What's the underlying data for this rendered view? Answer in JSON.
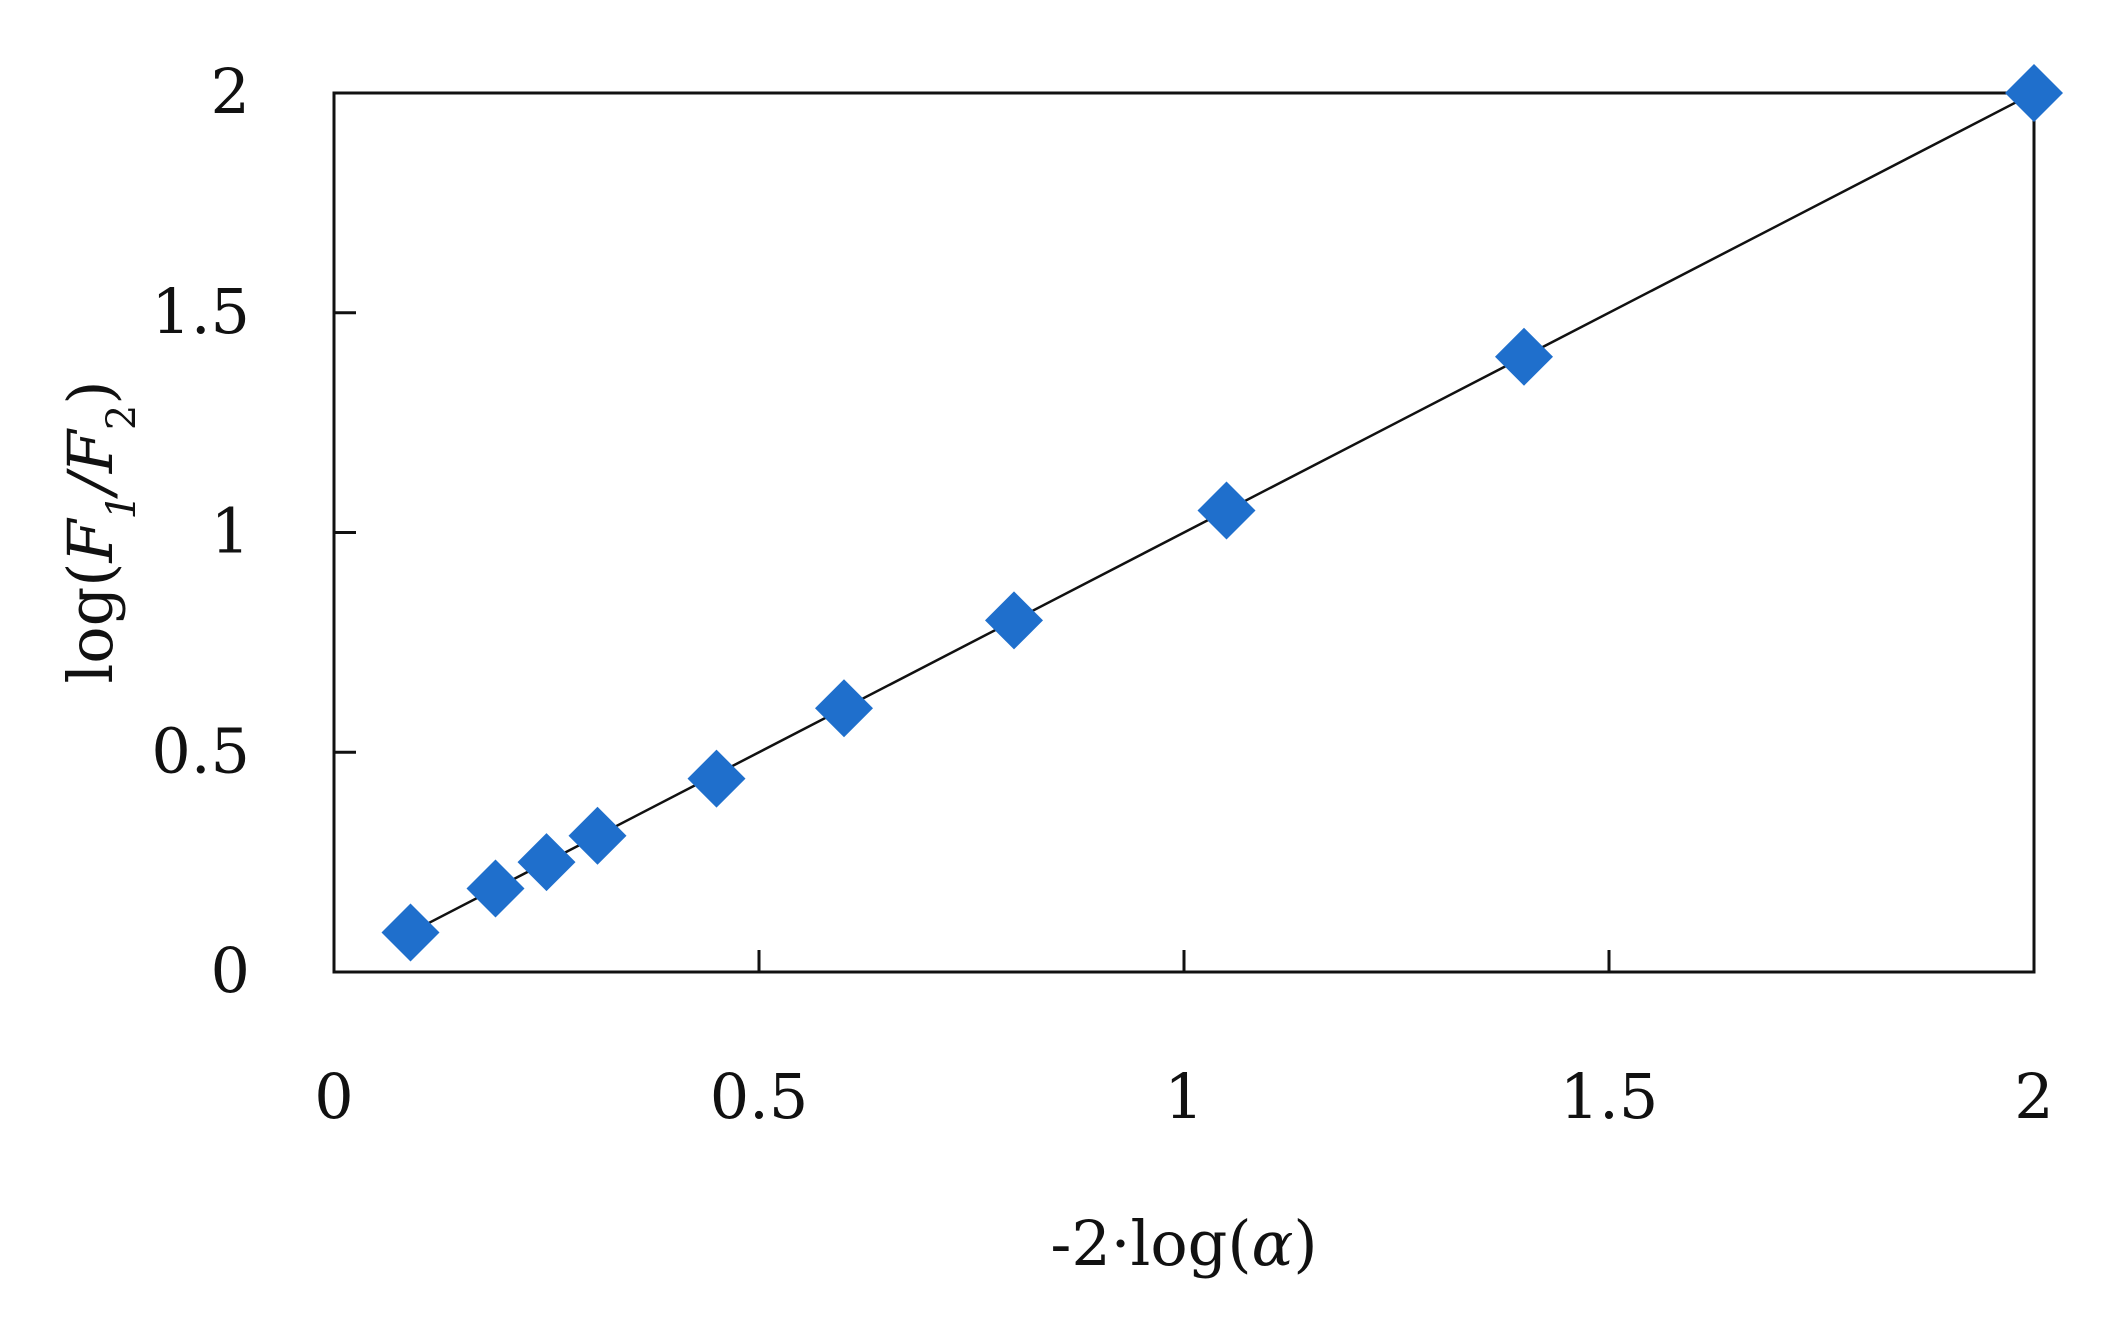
{
  "chart_data": {
    "type": "scatter",
    "title": "",
    "xlabel": "-2·log(α)",
    "ylabel": "log(F1/F2)",
    "xlabel_parts": {
      "prefix": "-2·log(",
      "var": "α",
      "suffix": ")"
    },
    "ylabel_parts": {
      "prefix": "log(",
      "var1": "F",
      "sub1": "1",
      "slash": "/",
      "var2": "F",
      "sub2": "2",
      "suffix": ")"
    },
    "xlim": [
      0,
      2
    ],
    "ylim": [
      0,
      2
    ],
    "xticks": [
      "0",
      "0.5",
      "1",
      "1.5",
      "2"
    ],
    "yticks": [
      "0",
      "0.5",
      "1",
      "1.5",
      "2"
    ],
    "xtick_values": [
      0,
      0.5,
      1,
      1.5,
      2
    ],
    "ytick_values": [
      0,
      0.5,
      1,
      1.5,
      2
    ],
    "grid": false,
    "legend": "none",
    "series": [
      {
        "marker": "diamond",
        "color": "#1f6fcc",
        "points": [
          {
            "x": 0.09,
            "y": 0.09
          },
          {
            "x": 0.19,
            "y": 0.19
          },
          {
            "x": 0.25,
            "y": 0.25
          },
          {
            "x": 0.31,
            "y": 0.31
          },
          {
            "x": 0.45,
            "y": 0.44
          },
          {
            "x": 0.6,
            "y": 0.6
          },
          {
            "x": 0.8,
            "y": 0.8
          },
          {
            "x": 1.05,
            "y": 1.05
          },
          {
            "x": 1.4,
            "y": 1.4
          },
          {
            "x": 2.0,
            "y": 2.0
          }
        ]
      }
    ],
    "trendline": {
      "type": "linear",
      "color": "#111111",
      "from": {
        "x": 0.09,
        "y": 0.09
      },
      "to": {
        "x": 2.0,
        "y": 2.0
      }
    }
  }
}
